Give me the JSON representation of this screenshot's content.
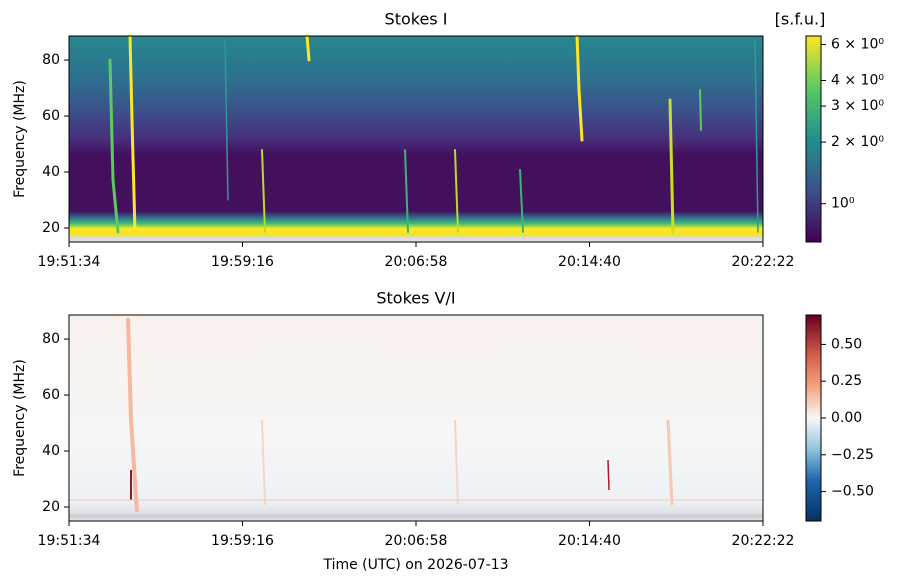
{
  "chart_data": [
    {
      "type": "heatmap",
      "title": "Stokes I",
      "ylabel": "Frequency (MHz)",
      "xlim": [
        "19:51:34",
        "20:22:22"
      ],
      "xticks": [
        "19:51:34",
        "19:59:16",
        "20:06:58",
        "20:14:40",
        "20:22:22"
      ],
      "ylim": [
        15,
        88.6
      ],
      "yticks": [
        20,
        40,
        60,
        80
      ],
      "colorbar": {
        "label": "[s.f.u.]",
        "scale": "log",
        "clim": [
          0.65,
          6.6
        ],
        "ticks": [
          {
            "value": 6,
            "label": "6 × 10⁰"
          },
          {
            "value": 4,
            "label": "4 × 10⁰"
          },
          {
            "value": 3,
            "label": "3 × 10⁰"
          },
          {
            "value": 2,
            "label": "2 × 10⁰"
          },
          {
            "value": 1,
            "label": "10⁰"
          }
        ]
      }
    },
    {
      "type": "heatmap",
      "title": "Stokes V/I",
      "ylabel": "Frequency (MHz)",
      "xlabel": "Time (UTC) on 2026-07-13",
      "xlim": [
        "19:51:34",
        "20:22:22"
      ],
      "xticks": [
        "19:51:34",
        "19:59:16",
        "20:06:58",
        "20:14:40",
        "20:22:22"
      ],
      "ylim": [
        15,
        88.6
      ],
      "yticks": [
        20,
        40,
        60,
        80
      ],
      "colorbar": {
        "scale": "linear",
        "clim": [
          -0.7,
          0.7
        ],
        "ticks": [
          {
            "value": 0.5,
            "label": "0.50"
          },
          {
            "value": 0.25,
            "label": "0.25"
          },
          {
            "value": 0,
            "label": "0.00"
          },
          {
            "value": -0.25,
            "label": "−0.25"
          },
          {
            "value": -0.5,
            "label": "−0.50"
          }
        ]
      }
    }
  ]
}
